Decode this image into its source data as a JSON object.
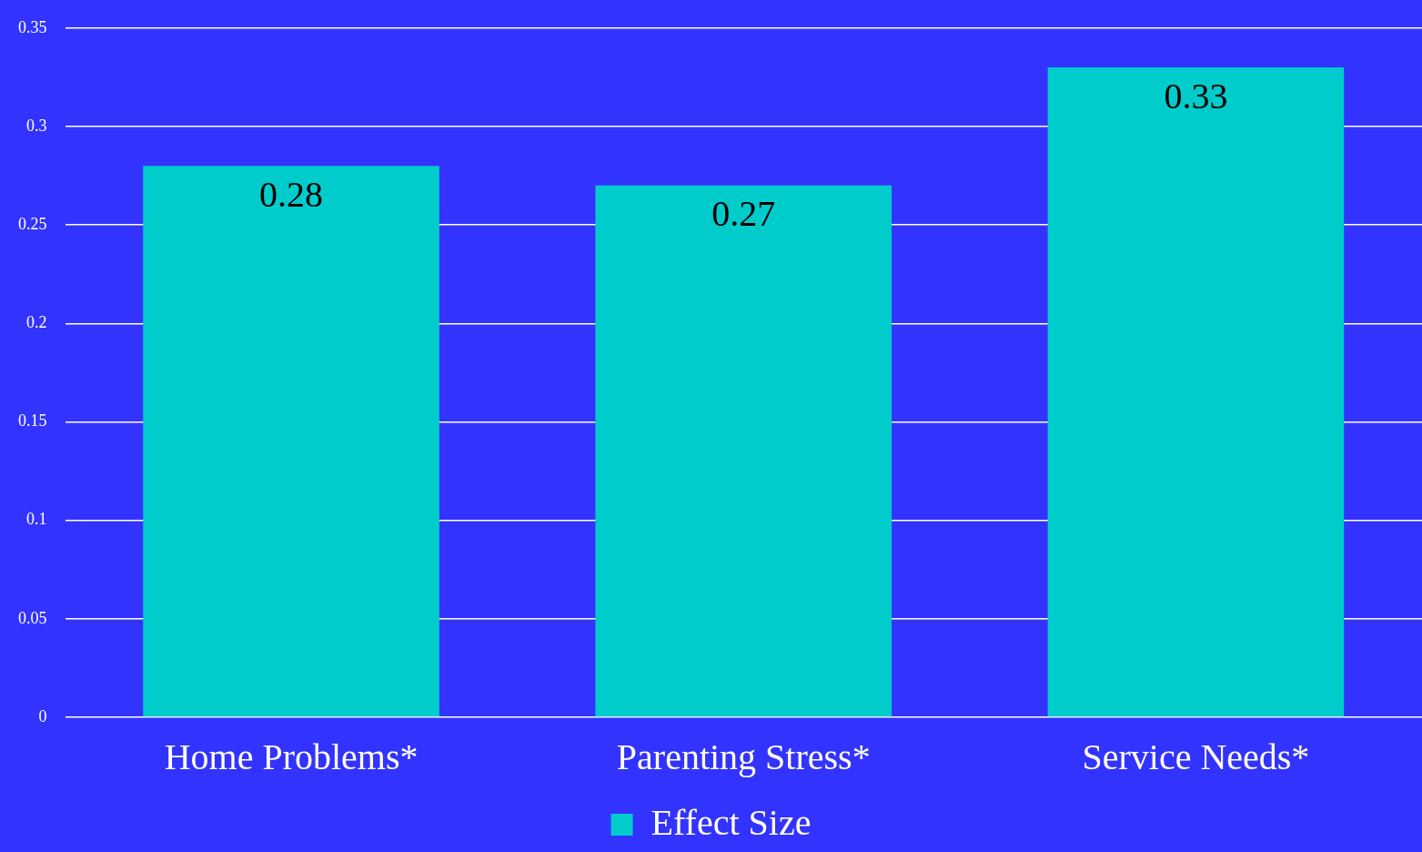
{
  "chart_data": {
    "type": "bar",
    "categories": [
      "Home Problems*",
      "Parenting Stress*",
      "Service Needs*"
    ],
    "series": [
      {
        "name": "Effect Size",
        "color": "#00cccc",
        "values": [
          0.28,
          0.27,
          0.33
        ]
      }
    ],
    "ylim": [
      0,
      0.35
    ],
    "yticks": [
      0,
      0.05,
      0.1,
      0.15,
      0.2,
      0.25,
      0.3,
      0.35
    ],
    "grid": "y",
    "legend": "bottom",
    "data_labels": true
  }
}
